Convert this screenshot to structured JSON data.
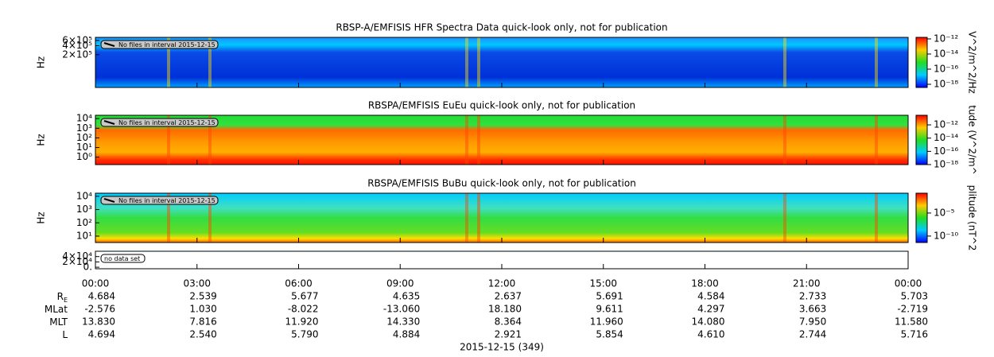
{
  "chart_data": [
    {
      "type": "spectrogram",
      "title": "RBSP-A/EMFISIS  HFR Spectra Data quick-look only, not for publication",
      "ylabel": "Hz",
      "yscale": "log",
      "ylim": [
        16000,
        760000
      ],
      "yticks": [
        {
          "value": 200000,
          "label": "2×10⁵"
        },
        {
          "value": 400000,
          "label": "4×10⁵"
        },
        {
          "value": 600000,
          "label": "6×10⁵"
        }
      ],
      "colorbar": {
        "label": "V^2/m^2/Hz",
        "scale": "log",
        "lim": [
          3.8e-19,
          1.6e-12
        ],
        "ticks": [
          {
            "value": 1e-12,
            "label": "10⁻¹²"
          },
          {
            "value": 1e-14,
            "label": "10⁻¹⁴"
          },
          {
            "value": 1e-16,
            "label": "10⁻¹⁶"
          },
          {
            "value": 1e-18,
            "label": "10⁻¹⁸"
          }
        ]
      },
      "annotation": "No files in interval 2015-12-15"
    },
    {
      "type": "spectrogram",
      "title": "RBSPA/EMFISIS  EuEu quick-look only, not for publication",
      "ylabel": "Hz",
      "yscale": "log",
      "ylim": [
        0.17,
        22000
      ],
      "yticks": [
        {
          "value": 10000,
          "label": "10⁴"
        },
        {
          "value": 1000,
          "label": "10³"
        },
        {
          "value": 100,
          "label": "10²"
        },
        {
          "value": 10,
          "label": "10¹"
        },
        {
          "value": 1,
          "label": "10⁰"
        }
      ],
      "colorbar": {
        "label": "tude (V^2/m^",
        "scale": "log",
        "lim": [
          1e-18,
          2.8e-11
        ],
        "ticks": [
          {
            "value": 1e-12,
            "label": "10⁻¹²"
          },
          {
            "value": 1e-14,
            "label": "10⁻¹⁴"
          },
          {
            "value": 1e-16,
            "label": "10⁻¹⁶"
          },
          {
            "value": 1e-18,
            "label": "10⁻¹⁸"
          }
        ]
      },
      "annotation": "No files in interval 2015-12-15"
    },
    {
      "type": "spectrogram",
      "title": "RBSPA/EMFISIS  BuBu quick-look only, not for publication",
      "ylabel": "Hz",
      "yscale": "log",
      "ylim": [
        3.3,
        17000
      ],
      "yticks": [
        {
          "value": 10000,
          "label": "10⁴"
        },
        {
          "value": 1000,
          "label": "10³"
        },
        {
          "value": 100,
          "label": "10²"
        },
        {
          "value": 10,
          "label": "10¹"
        }
      ],
      "colorbar": {
        "label": "plitude (nT^2",
        "scale": "log",
        "lim": [
          4e-12,
          0.2
        ],
        "ticks": [
          {
            "value": 1e-05,
            "label": "10⁻⁵"
          },
          {
            "value": 1e-10,
            "label": "10⁻¹⁰"
          }
        ]
      },
      "annotation": "No files in interval 2015-12-15"
    },
    {
      "type": "empty",
      "yscale": "linear",
      "ylim": [
        -5700,
        60000
      ],
      "yticks": [
        {
          "value": 40000,
          "label": "4×10⁴"
        },
        {
          "value": 20000,
          "label": "2×10⁴"
        },
        {
          "value": 0,
          "label": "0."
        }
      ],
      "annotation": "no data set"
    }
  ],
  "x_axis": {
    "xlim": [
      0,
      24
    ],
    "label": "2015-12-15 (349)",
    "xticks": [
      {
        "value": 0,
        "label": "00:00"
      },
      {
        "value": 3,
        "label": "03:00"
      },
      {
        "value": 6,
        "label": "06:00"
      },
      {
        "value": 9,
        "label": "09:00"
      },
      {
        "value": 12,
        "label": "12:00"
      },
      {
        "value": 15,
        "label": "15:00"
      },
      {
        "value": 18,
        "label": "18:00"
      },
      {
        "value": 21,
        "label": "21:00"
      },
      {
        "value": 24,
        "label": "00:00"
      }
    ]
  },
  "ephemeris": [
    {
      "label": "R",
      "sub": "E",
      "values": [
        "4.684",
        "2.539",
        "5.677",
        "4.635",
        "2.637",
        "5.691",
        "4.584",
        "2.733",
        "5.703"
      ]
    },
    {
      "label": "MLat",
      "values": [
        "-2.576",
        "1.030",
        "-8.022",
        "-13.060",
        "18.180",
        "9.611",
        "4.297",
        "3.663",
        "-2.719"
      ]
    },
    {
      "label": "MLT",
      "values": [
        "13.830",
        "7.816",
        "11.920",
        "14.330",
        "8.364",
        "11.960",
        "14.080",
        "7.950",
        "11.580"
      ]
    },
    {
      "label": "L",
      "values": [
        "4.694",
        "2.540",
        "5.790",
        "4.884",
        "2.921",
        "5.854",
        "4.610",
        "2.744",
        "5.716"
      ]
    }
  ]
}
